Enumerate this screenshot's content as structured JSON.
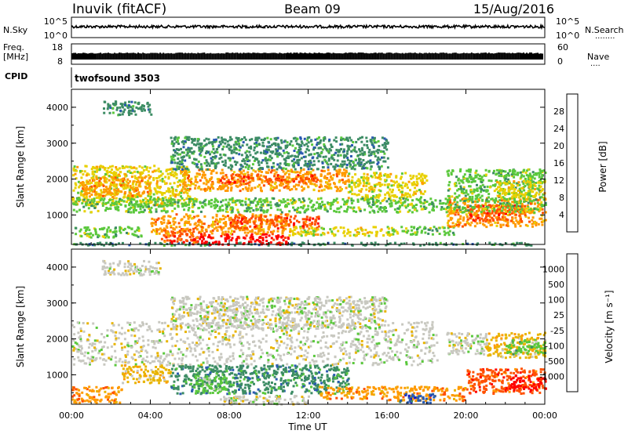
{
  "header": {
    "site": "Inuvik (fitACF)",
    "beam": "Beam 09",
    "date": "15/Aug/2016"
  },
  "nsky_panel": {
    "label": "N.Sky",
    "left_ticks": [
      "10^5",
      "10^0"
    ],
    "right_ticks": [
      "10^5",
      "10^0"
    ],
    "right_label": "N.Search",
    "right_label_dots": "........"
  },
  "freq_panel": {
    "label_line1": "Freq.",
    "label_line2": "[MHz]",
    "left_ticks": [
      "18",
      "8"
    ],
    "right_ticks": [
      "60",
      "0"
    ],
    "right_label": "Nave",
    "right_label_dots": "...."
  },
  "cpid_panel": {
    "label": "CPID",
    "program": "twofsound 3503"
  },
  "chart_data": [
    {
      "type": "heatmap",
      "name": "power",
      "ylabel": "Slant Range [km]",
      "y_ticks": [
        "1000",
        "2000",
        "3000",
        "4000"
      ],
      "ylim": [
        180,
        4500
      ],
      "colorbar_label": "Power [dB]",
      "colorbar_ticks": [
        "4",
        "8",
        "12",
        "16",
        "20",
        "24",
        "28"
      ],
      "colors": [
        "#1414ff",
        "#2858b0",
        "#3c8c64",
        "#5ac83c",
        "#e8d000",
        "#ff9a00",
        "#ff5000",
        "#ff0000"
      ],
      "data_regions": [
        {
          "t0": 0.0,
          "t1": 24.0,
          "r0": 180,
          "r1": 260,
          "level": 2
        },
        {
          "t0": 6.0,
          "t1": 11.0,
          "r0": 200,
          "r1": 500,
          "level": 7
        },
        {
          "t0": 4.5,
          "t1": 6.5,
          "r0": 250,
          "r1": 650,
          "level": 6
        },
        {
          "t0": 4.0,
          "t1": 11.0,
          "r0": 500,
          "r1": 1050,
          "level": 5
        },
        {
          "t0": 8.0,
          "t1": 12.5,
          "r0": 650,
          "r1": 1000,
          "level": 6
        },
        {
          "t0": 0.0,
          "t1": 3.5,
          "r0": 400,
          "r1": 700,
          "level": 3
        },
        {
          "t0": 11.0,
          "t1": 16.5,
          "r0": 450,
          "r1": 700,
          "level": 4
        },
        {
          "t0": 16.0,
          "t1": 19.5,
          "r0": 480,
          "r1": 700,
          "level": 3
        },
        {
          "t0": 19.0,
          "t1": 24.0,
          "r0": 700,
          "r1": 1500,
          "level": 5
        },
        {
          "t0": 20.0,
          "t1": 23.0,
          "r0": 850,
          "r1": 1300,
          "level": 6
        },
        {
          "t0": 0.0,
          "t1": 6.0,
          "r0": 1300,
          "r1": 2400,
          "level": 4
        },
        {
          "t0": 0.5,
          "t1": 4.0,
          "r0": 1550,
          "r1": 2100,
          "level": 5
        },
        {
          "t0": 5.5,
          "t1": 14.0,
          "r0": 1700,
          "r1": 2300,
          "level": 5
        },
        {
          "t0": 7.5,
          "t1": 12.5,
          "r0": 1900,
          "r1": 2150,
          "level": 6
        },
        {
          "t0": 14.0,
          "t1": 18.0,
          "r0": 1500,
          "r1": 2200,
          "level": 4
        },
        {
          "t0": 19.0,
          "t1": 24.0,
          "r0": 1500,
          "r1": 2300,
          "level": 3
        },
        {
          "t0": 21.5,
          "t1": 24.0,
          "r0": 1500,
          "r1": 2000,
          "level": 4
        },
        {
          "t0": 5.0,
          "t1": 16.0,
          "r0": 2300,
          "r1": 3200,
          "level": 2
        },
        {
          "t0": 1.5,
          "t1": 4.0,
          "r0": 3800,
          "r1": 4200,
          "level": 2
        },
        {
          "t0": 0.0,
          "t1": 24.0,
          "r0": 1100,
          "r1": 1500,
          "level": 3
        }
      ]
    },
    {
      "type": "heatmap",
      "name": "velocity",
      "ylabel": "Slant Range [km]",
      "y_ticks": [
        "1000",
        "2000",
        "3000",
        "4000"
      ],
      "ylim": [
        180,
        4500
      ],
      "colorbar_label": "Velocity [m s⁻¹]",
      "colorbar_ticks": [
        "1000",
        "500",
        "100",
        "25",
        "-25",
        "-100",
        "-500",
        "-1000"
      ],
      "colors": [
        "#1818c8",
        "#2c5cb0",
        "#3c8c64",
        "#5ac83c",
        "#c8c8c0",
        "#e8b400",
        "#ff9a00",
        "#ff5000",
        "#ff0000"
      ],
      "data_regions": [
        {
          "t0": 0.0,
          "t1": 18.5,
          "r0": 1300,
          "r1": 2500,
          "level": 4
        },
        {
          "t0": 5.0,
          "t1": 16.0,
          "r0": 2300,
          "r1": 3200,
          "level": 4
        },
        {
          "t0": 1.5,
          "t1": 4.5,
          "r0": 3800,
          "r1": 4200,
          "level": 4
        },
        {
          "t0": 0.0,
          "t1": 2.5,
          "r0": 250,
          "r1": 700,
          "level": 6
        },
        {
          "t0": 2.5,
          "t1": 5.0,
          "r0": 800,
          "r1": 1300,
          "level": 5
        },
        {
          "t0": 5.0,
          "t1": 14.0,
          "r0": 500,
          "r1": 1300,
          "level": 2
        },
        {
          "t0": 6.0,
          "t1": 8.0,
          "r0": 500,
          "r1": 1000,
          "level": 3
        },
        {
          "t0": 7.5,
          "t1": 12.0,
          "r0": 200,
          "r1": 450,
          "level": 4
        },
        {
          "t0": 12.5,
          "t1": 16.0,
          "r0": 350,
          "r1": 700,
          "level": 6
        },
        {
          "t0": 16.0,
          "t1": 20.0,
          "r0": 300,
          "r1": 700,
          "level": 6
        },
        {
          "t0": 16.5,
          "t1": 18.5,
          "r0": 250,
          "r1": 500,
          "level": 1
        },
        {
          "t0": 20.0,
          "t1": 24.0,
          "r0": 500,
          "r1": 1200,
          "level": 7
        },
        {
          "t0": 22.0,
          "t1": 24.0,
          "r0": 600,
          "r1": 1000,
          "level": 8
        },
        {
          "t0": 21.0,
          "t1": 24.0,
          "r0": 1500,
          "r1": 2200,
          "level": 5
        },
        {
          "t0": 22.0,
          "t1": 24.0,
          "r0": 1600,
          "r1": 2000,
          "level": 3
        },
        {
          "t0": 19.0,
          "t1": 21.0,
          "r0": 1600,
          "r1": 2200,
          "level": 4
        }
      ]
    }
  ],
  "x_axis": {
    "label": "Time UT",
    "ticks": [
      "00:00",
      "04:00",
      "08:00",
      "12:00",
      "16:00",
      "20:00",
      "00:00"
    ],
    "xlim": [
      0,
      24
    ]
  }
}
